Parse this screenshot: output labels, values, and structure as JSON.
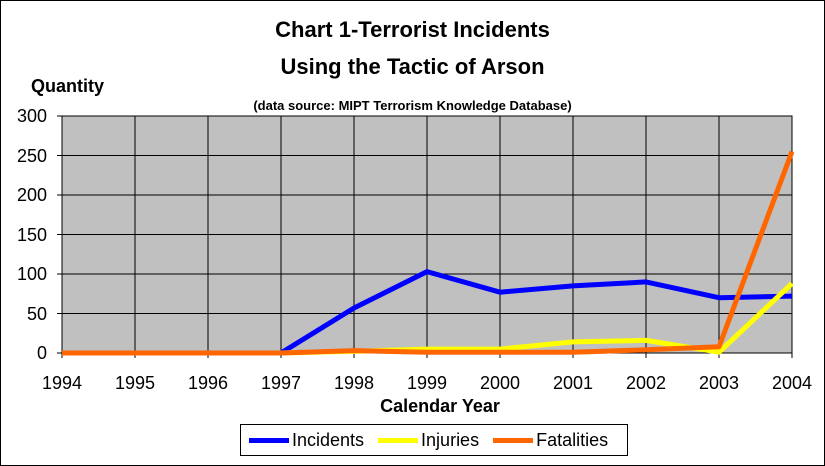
{
  "chart_data": {
    "type": "line",
    "title": "Chart 1-Terrorist Incidents",
    "title_line2": "Using the Tactic of Arson",
    "subtitle": "(data source: MIPT Terrorism Knowledge Database)",
    "xlabel": "Calendar Year",
    "ylabel": "Quantity",
    "ylim": [
      0,
      300
    ],
    "yticks": [
      "0",
      "50",
      "100",
      "150",
      "200",
      "250",
      "300"
    ],
    "categories": [
      "1994",
      "1995",
      "1996",
      "1997",
      "1998",
      "1999",
      "2000",
      "2001",
      "2002",
      "2003",
      "2004"
    ],
    "grid": true,
    "legend_position": "bottom",
    "series": [
      {
        "name": "Incidents",
        "color": "#0000ff",
        "values": [
          0,
          0,
          0,
          0,
          57,
          103,
          77,
          85,
          90,
          70,
          72
        ]
      },
      {
        "name": "Injuries",
        "color": "#ffff00",
        "values": [
          0,
          0,
          0,
          0,
          2,
          5,
          5,
          14,
          16,
          1,
          88
        ]
      },
      {
        "name": "Fatalities",
        "color": "#ff6600",
        "values": [
          0,
          0,
          0,
          0,
          3,
          1,
          1,
          1,
          4,
          8,
          255
        ]
      }
    ]
  }
}
